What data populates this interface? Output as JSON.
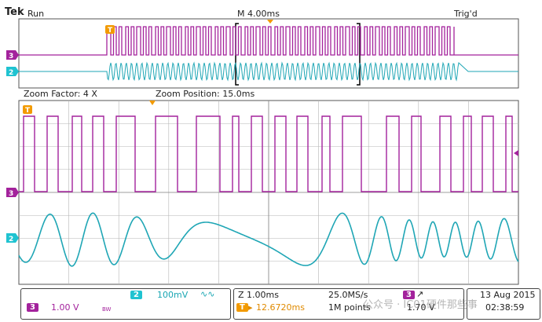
{
  "header": {
    "brand": "Tek",
    "run_state": "Run",
    "timebase": "M 4.00ms",
    "trigger_state": "Trig'd"
  },
  "zoom": {
    "factor": "Zoom Factor: 4 X",
    "position": "Zoom Position: 15.0ms"
  },
  "channels": {
    "ch3_marker": "3",
    "ch2_marker": "2",
    "trigger_marker": "T"
  },
  "status_bar": {
    "ch3_num": "3",
    "ch3_scale": "1.00 V",
    "ch3_bw": "BW",
    "ch2_num": "2",
    "ch2_scale": "100mV",
    "ch2_coupling": "∿∿",
    "zoom_time": "Z 1.00ms",
    "trigger_pos": "12.6720ms",
    "sample_rate": "25.0MS/s",
    "record_length": "1M points",
    "trig_ch": "3",
    "trig_arrow": "↗",
    "trig_level": "1.70 V",
    "date": "13 Aug 2015",
    "time": "02:38:59"
  },
  "watermark": "公众号 · IC01硬件那些事",
  "colors": {
    "ch3": "#a3229c",
    "ch2": "#1fa6b5",
    "grid": "#b5b5b5",
    "trigger": "#f29a00"
  },
  "icons": [
    "trigger-t-icon",
    "ch3-ground-icon",
    "ch2-ground-icon",
    "zoom-bracket-icon",
    "trigger-position-icon"
  ]
}
